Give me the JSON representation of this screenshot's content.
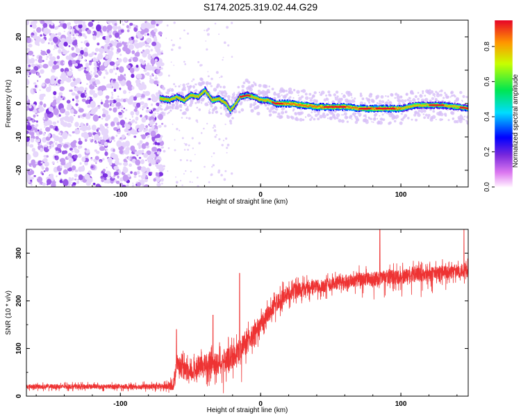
{
  "figure_title": "S174.2025.319.02.44.G29",
  "colors": {
    "snr_line": "#ee3333",
    "noise_purple": "#8a2be2",
    "axis": "#000000"
  },
  "chart_data": [
    {
      "type": "heatmap",
      "title": "S174.2025.319.02.44.G29",
      "xlabel": "Height of straight line (km)",
      "ylabel": "Frequency (Hz)",
      "xlim": [
        -167,
        148
      ],
      "ylim": [
        -25,
        25
      ],
      "xticks": [
        -100,
        0,
        100
      ],
      "yticks": [
        -20,
        -10,
        0,
        10,
        20
      ],
      "noise_region_x": [
        -167,
        -70
      ],
      "ridge": {
        "x": [
          -72,
          -65,
          -60,
          -55,
          -50,
          -45,
          -40,
          -35,
          -30,
          -25,
          -22,
          -18,
          -15,
          -10,
          -5,
          0,
          5,
          10,
          15,
          20,
          30,
          40,
          50,
          60,
          70,
          80,
          90,
          100,
          110,
          120,
          130,
          140,
          148
        ],
        "freq": [
          1.5,
          1.0,
          2.0,
          1.0,
          2.5,
          2.0,
          4.0,
          1.0,
          1.5,
          0.0,
          -2.0,
          0.0,
          2.0,
          2.5,
          2.0,
          1.0,
          1.0,
          0.0,
          0.0,
          0.0,
          -0.5,
          -1.0,
          -1.0,
          -1.0,
          -1.5,
          -1.5,
          -1.5,
          -1.5,
          -0.5,
          -0.5,
          -0.5,
          -1.0,
          -1.5
        ]
      },
      "colorbar": {
        "label": "Normalized spectral amplitude",
        "range": [
          0.0,
          0.95
        ],
        "ticks": [
          "0.0",
          "0.2",
          "0.4",
          "0.6",
          "0.8"
        ],
        "tick_values": [
          0.0,
          0.2,
          0.4,
          0.6,
          0.8
        ]
      }
    },
    {
      "type": "line",
      "xlabel": "Height of straight line (km)",
      "ylabel": "SNR (10 * v/v)",
      "xlim": [
        -167,
        148
      ],
      "ylim": [
        0,
        350
      ],
      "xticks": [
        -100,
        0,
        100
      ],
      "yticks": [
        0,
        100,
        200,
        300
      ],
      "series": [
        {
          "name": "SNR",
          "x": [
            -167,
            -140,
            -100,
            -70,
            -62,
            -60,
            -55,
            -50,
            -45,
            -40,
            -35,
            -32,
            -30,
            -25,
            -20,
            -15,
            -10,
            -5,
            0,
            5,
            10,
            15,
            20,
            30,
            40,
            50,
            60,
            70,
            80,
            90,
            100,
            110,
            120,
            130,
            140,
            148
          ],
          "values": [
            20,
            20,
            20,
            20,
            22,
            70,
            55,
            45,
            60,
            65,
            70,
            65,
            70,
            75,
            80,
            100,
            110,
            130,
            150,
            170,
            190,
            205,
            215,
            225,
            230,
            235,
            240,
            245,
            245,
            250,
            250,
            255,
            255,
            260,
            262,
            265
          ],
          "noise_amplitude": [
            10,
            10,
            10,
            12,
            20,
            40,
            40,
            35,
            40,
            45,
            50,
            50,
            50,
            50,
            50,
            50,
            45,
            40,
            40,
            35,
            35,
            35,
            35,
            30,
            30,
            30,
            30,
            30,
            30,
            30,
            30,
            30,
            30,
            30,
            30,
            30
          ],
          "peaks": [
            {
              "x": -60,
              "y": 140
            },
            {
              "x": -34,
              "y": 170
            },
            {
              "x": -15,
              "y": 258
            },
            {
              "x": 85,
              "y": 352
            },
            {
              "x": 145,
              "y": 350
            }
          ]
        }
      ]
    }
  ]
}
